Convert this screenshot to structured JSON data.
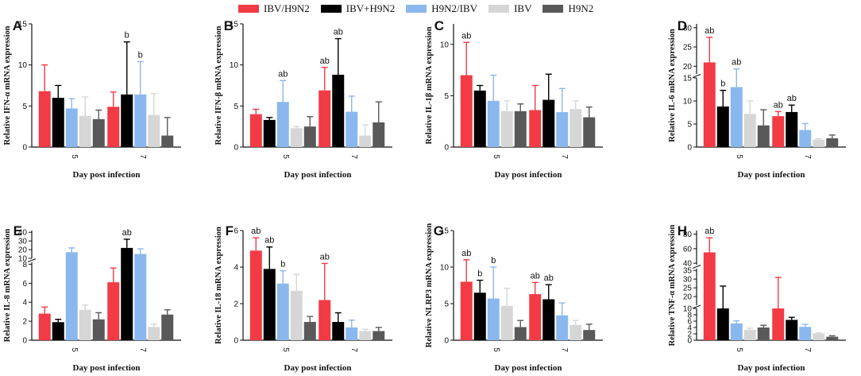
{
  "legend": [
    {
      "name": "IBV/H9N2",
      "color": "#f23b45"
    },
    {
      "name": "IBV+H9N2",
      "color": "#000000"
    },
    {
      "name": "H9N2/IBV",
      "color": "#8ab8ee"
    },
    {
      "name": "IBV",
      "color": "#d6d6d6"
    },
    {
      "name": "H9N2",
      "color": "#595959"
    }
  ],
  "chart_data": [
    {
      "panel": "A",
      "type": "bar",
      "ylabel": "Relative IFN-α mRNA expression",
      "xlabel": "Day post infection",
      "categories": [
        "5",
        "7"
      ],
      "ylim": [
        0,
        15
      ],
      "yticks": [
        0,
        5,
        10,
        15
      ],
      "series": [
        {
          "name": "IBV/H9N2",
          "values": [
            6.8,
            4.9
          ],
          "errors": [
            3.2,
            1.8
          ]
        },
        {
          "name": "IBV+H9N2",
          "values": [
            6.0,
            6.4
          ],
          "errors": [
            1.5,
            6.4
          ]
        },
        {
          "name": "H9N2/IBV",
          "values": [
            4.7,
            6.4
          ],
          "errors": [
            1.2,
            4.0
          ]
        },
        {
          "name": "IBV",
          "values": [
            3.8,
            3.9
          ],
          "errors": [
            2.3,
            2.6
          ]
        },
        {
          "name": "H9N2",
          "values": [
            3.4,
            1.4
          ],
          "errors": [
            1.1,
            2.2
          ]
        }
      ],
      "annotations": [
        {
          "text": "b",
          "category": 1,
          "series": 1
        },
        {
          "text": "b",
          "category": 1,
          "series": 2
        }
      ]
    },
    {
      "panel": "B",
      "type": "bar",
      "ylabel": "Relative IFN-β mRNA expression",
      "xlabel": "Day post infection",
      "categories": [
        "5",
        "7"
      ],
      "ylim": [
        0,
        15
      ],
      "yticks": [
        0,
        5,
        10,
        15
      ],
      "series": [
        {
          "name": "IBV/H9N2",
          "values": [
            4.0,
            6.9
          ],
          "errors": [
            0.6,
            2.8
          ]
        },
        {
          "name": "IBV+H9N2",
          "values": [
            3.3,
            8.8
          ],
          "errors": [
            0.3,
            4.4
          ]
        },
        {
          "name": "H9N2/IBV",
          "values": [
            5.5,
            4.3
          ],
          "errors": [
            2.6,
            1.9
          ]
        },
        {
          "name": "IBV",
          "values": [
            2.3,
            1.4
          ],
          "errors": [
            0.2,
            1.3
          ]
        },
        {
          "name": "H9N2",
          "values": [
            2.5,
            3.0
          ],
          "errors": [
            1.2,
            2.5
          ]
        }
      ],
      "annotations": [
        {
          "text": "ab",
          "category": 0,
          "series": 2
        },
        {
          "text": "ab",
          "category": 1,
          "series": 0
        },
        {
          "text": "ab",
          "category": 1,
          "series": 1
        }
      ]
    },
    {
      "panel": "C",
      "type": "bar",
      "ylabel": "Relative IL-1β mRNA expression",
      "xlabel": "Day post infection",
      "categories": [
        "5",
        "7"
      ],
      "ylim": [
        0,
        12
      ],
      "yticks": [
        0,
        5,
        10
      ],
      "series": [
        {
          "name": "IBV/H9N2",
          "values": [
            7.0,
            3.6
          ],
          "errors": [
            3.2,
            2.4
          ]
        },
        {
          "name": "IBV+H9N2",
          "values": [
            5.5,
            4.6
          ],
          "errors": [
            0.5,
            2.5
          ]
        },
        {
          "name": "H9N2/IBV",
          "values": [
            4.5,
            3.4
          ],
          "errors": [
            2.5,
            2.3
          ]
        },
        {
          "name": "IBV",
          "values": [
            3.5,
            3.7
          ],
          "errors": [
            1.0,
            0.8
          ]
        },
        {
          "name": "H9N2",
          "values": [
            3.5,
            2.9
          ],
          "errors": [
            0.7,
            1.0
          ]
        }
      ],
      "annotations": [
        {
          "text": "ab",
          "category": 0,
          "series": 0
        }
      ]
    },
    {
      "panel": "D",
      "type": "bar",
      "ylabel": "Relative IL-6 mRNA expression",
      "xlabel": "Day post infection",
      "categories": [
        "5",
        "7"
      ],
      "broken_axis": true,
      "yticks_lower": [
        0,
        5,
        10,
        15
      ],
      "yticks_upper": [
        20,
        25,
        30
      ],
      "series": [
        {
          "name": "IBV/H9N2",
          "values": [
            21.0,
            6.7
          ],
          "errors": [
            6.5,
            1.0
          ]
        },
        {
          "name": "IBV+H9N2",
          "values": [
            8.8,
            7.6
          ],
          "errors": [
            3.5,
            1.5
          ]
        },
        {
          "name": "H9N2/IBV",
          "values": [
            13.0,
            3.7
          ],
          "errors": [
            6.3,
            1.4
          ]
        },
        {
          "name": "IBV",
          "values": [
            7.2,
            1.6
          ],
          "errors": [
            2.8,
            0.2
          ]
        },
        {
          "name": "H9N2",
          "values": [
            4.7,
            1.9
          ],
          "errors": [
            3.4,
            0.7
          ]
        }
      ],
      "annotations": [
        {
          "text": "ab",
          "category": 0,
          "series": 0
        },
        {
          "text": "b",
          "category": 0,
          "series": 1
        },
        {
          "text": "ab",
          "category": 0,
          "series": 2
        },
        {
          "text": "ab",
          "category": 1,
          "series": 0
        },
        {
          "text": "ab",
          "category": 1,
          "series": 1
        }
      ]
    },
    {
      "panel": "E",
      "type": "bar",
      "ylabel": "Relative IL-8 mRNA expression",
      "xlabel": "Day post infection",
      "categories": [
        "5",
        "7"
      ],
      "broken_axis": true,
      "yticks_lower": [
        0,
        2,
        4,
        6,
        8
      ],
      "yticks_upper": [
        10,
        20,
        30,
        40
      ],
      "series": [
        {
          "name": "IBV/H9N2",
          "values": [
            2.8,
            6.1
          ],
          "errors": [
            0.7,
            1.5
          ]
        },
        {
          "name": "IBV+H9N2",
          "values": [
            1.9,
            22.0
          ],
          "errors": [
            0.3,
            10.0
          ]
        },
        {
          "name": "H9N2/IBV",
          "values": [
            17.0,
            15.0
          ],
          "errors": [
            5.0,
            6.0
          ]
        },
        {
          "name": "IBV",
          "values": [
            3.2,
            1.4
          ],
          "errors": [
            0.5,
            0.3
          ]
        },
        {
          "name": "H9N2",
          "values": [
            2.2,
            2.7
          ],
          "errors": [
            0.7,
            0.5
          ]
        }
      ],
      "annotations": [
        {
          "text": "ab",
          "category": 1,
          "series": 1
        }
      ]
    },
    {
      "panel": "F",
      "type": "bar",
      "ylabel": "Relative IL-18 mRNA expression",
      "xlabel": "Day post infection",
      "categories": [
        "5",
        "7"
      ],
      "ylim": [
        0,
        6
      ],
      "yticks": [
        0,
        2,
        4,
        6
      ],
      "series": [
        {
          "name": "IBV/H9N2",
          "values": [
            4.9,
            2.2
          ],
          "errors": [
            0.7,
            2.0
          ]
        },
        {
          "name": "IBV+H9N2",
          "values": [
            3.9,
            1.0
          ],
          "errors": [
            1.2,
            0.5
          ]
        },
        {
          "name": "H9N2/IBV",
          "values": [
            3.1,
            0.7
          ],
          "errors": [
            0.7,
            0.4
          ]
        },
        {
          "name": "IBV",
          "values": [
            2.7,
            0.5
          ],
          "errors": [
            0.9,
            0.1
          ]
        },
        {
          "name": "H9N2",
          "values": [
            1.0,
            0.5
          ],
          "errors": [
            0.3,
            0.2
          ]
        }
      ],
      "annotations": [
        {
          "text": "ab",
          "category": 0,
          "series": 0
        },
        {
          "text": "ab",
          "category": 0,
          "series": 1
        },
        {
          "text": "b",
          "category": 0,
          "series": 2
        },
        {
          "text": "ab",
          "category": 1,
          "series": 0
        }
      ]
    },
    {
      "panel": "G",
      "type": "bar",
      "ylabel": "Relative NLRP3 mRNA expression",
      "xlabel": "Day post infection",
      "categories": [
        "5",
        "7"
      ],
      "ylim": [
        0,
        15
      ],
      "yticks": [
        0,
        5,
        10,
        15
      ],
      "series": [
        {
          "name": "IBV/H9N2",
          "values": [
            8.0,
            6.3
          ],
          "errors": [
            3.0,
            1.6
          ]
        },
        {
          "name": "IBV+H9N2",
          "values": [
            6.5,
            5.6
          ],
          "errors": [
            1.7,
            2.0
          ]
        },
        {
          "name": "H9N2/IBV",
          "values": [
            5.7,
            3.4
          ],
          "errors": [
            4.3,
            1.7
          ]
        },
        {
          "name": "IBV",
          "values": [
            4.7,
            2.1
          ],
          "errors": [
            2.4,
            0.6
          ]
        },
        {
          "name": "H9N2",
          "values": [
            1.8,
            1.4
          ],
          "errors": [
            0.9,
            0.8
          ]
        }
      ],
      "annotations": [
        {
          "text": "ab",
          "category": 0,
          "series": 0
        },
        {
          "text": "b",
          "category": 0,
          "series": 1
        },
        {
          "text": "b",
          "category": 0,
          "series": 2
        },
        {
          "text": "ab",
          "category": 1,
          "series": 0
        },
        {
          "text": "ab",
          "category": 1,
          "series": 1
        }
      ]
    },
    {
      "panel": "H",
      "type": "bar",
      "ylabel": "Relative TNF-α mRNA expression",
      "xlabel": "Day post infection",
      "categories": [
        "5",
        "7"
      ],
      "broken_axis": true,
      "yticks_lower": [
        0,
        2,
        4,
        6,
        8,
        10
      ],
      "yticks_middle": [
        20,
        25,
        30,
        35
      ],
      "yticks_upper": [
        40,
        60,
        80
      ],
      "series": [
        {
          "name": "IBV/H9N2",
          "values": [
            55.0,
            10.0
          ],
          "errors": [
            20.0,
            21.0
          ]
        },
        {
          "name": "IBV+H9N2",
          "values": [
            10.0,
            6.4
          ],
          "errors": [
            16.0,
            0.8
          ]
        },
        {
          "name": "H9N2/IBV",
          "values": [
            5.3,
            4.2
          ],
          "errors": [
            0.8,
            0.8
          ]
        },
        {
          "name": "IBV",
          "values": [
            3.3,
            2.1
          ],
          "errors": [
            0.5,
            0.2
          ]
        },
        {
          "name": "H9N2",
          "values": [
            4.0,
            1.1
          ],
          "errors": [
            0.7,
            0.3
          ]
        }
      ],
      "annotations": [
        {
          "text": "ab",
          "category": 0,
          "series": 0
        }
      ]
    }
  ]
}
